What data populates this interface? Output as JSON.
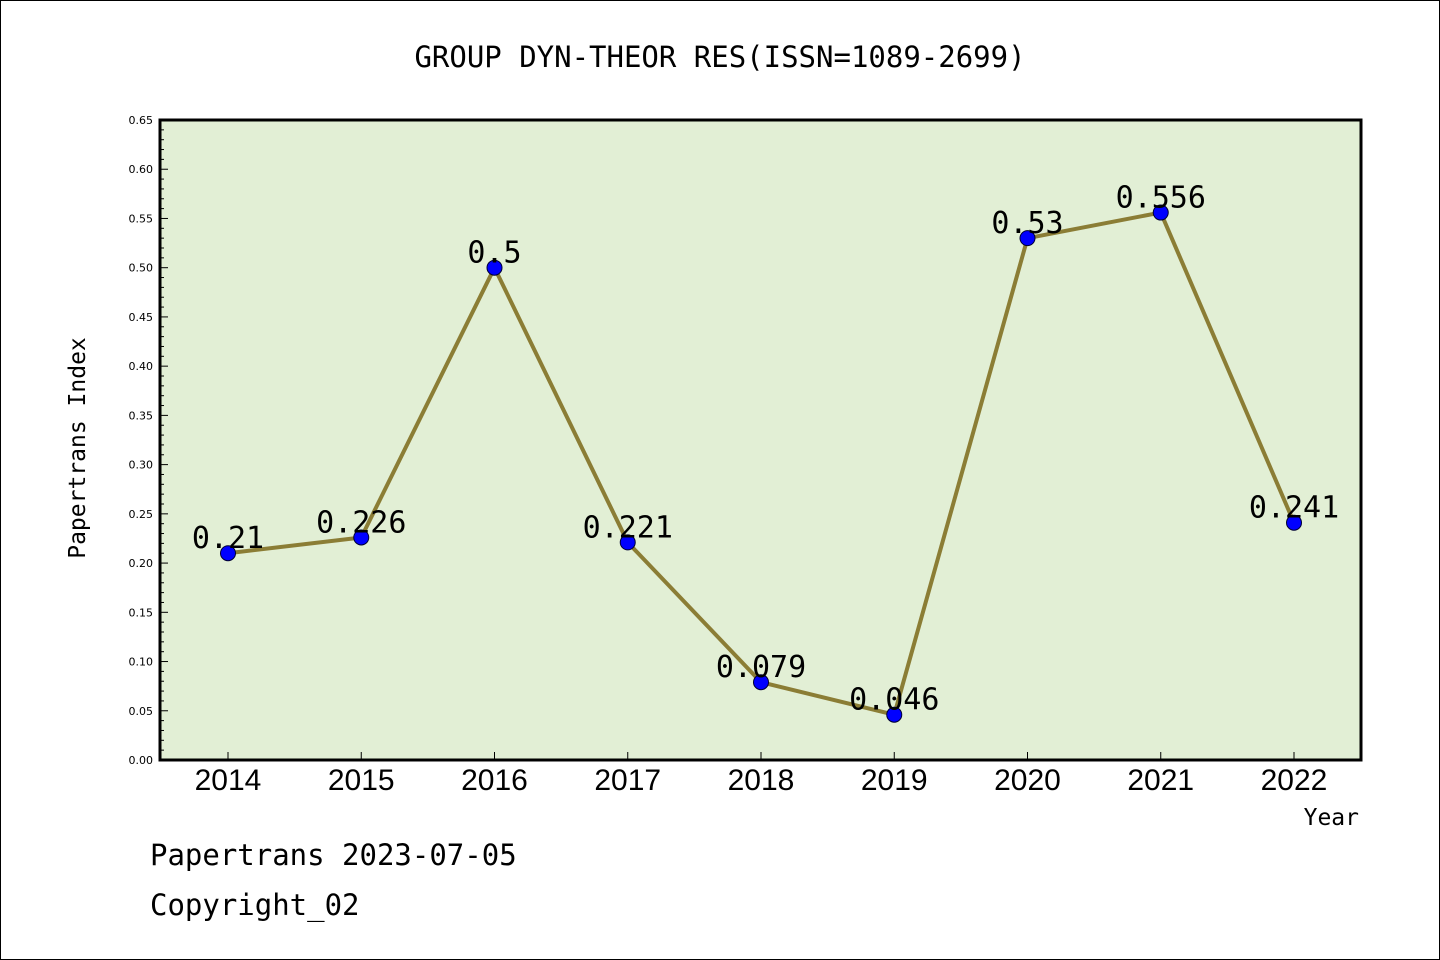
{
  "chart_data": {
    "type": "line",
    "title": "GROUP DYN-THEOR RES(ISSN=1089-2699)",
    "xlabel": "Year",
    "ylabel": "Papertrans Index",
    "categories": [
      "2014",
      "2015",
      "2016",
      "2017",
      "2018",
      "2019",
      "2020",
      "2021",
      "2022"
    ],
    "values": [
      0.21,
      0.226,
      0.5,
      0.221,
      0.079,
      0.046,
      0.53,
      0.556,
      0.241
    ],
    "data_labels": [
      "0.21",
      "0.226",
      "0.5",
      "0.221",
      "0.079",
      "0.046",
      "0.53",
      "0.556",
      "0.241"
    ],
    "ylim": [
      0,
      0.65
    ],
    "yticks": [
      "0.00",
      "0.05",
      "0.10",
      "0.15",
      "0.20",
      "0.25",
      "0.30",
      "0.35",
      "0.40",
      "0.45",
      "0.50",
      "0.55",
      "0.60",
      "0.65"
    ],
    "grid": false,
    "colors": {
      "plot_background": "#e2efd5",
      "line": "#8b7d35",
      "marker": "#0000ff"
    }
  },
  "footer": {
    "line1": "Papertrans 2023-07-05",
    "line2": "Copyright_02"
  }
}
